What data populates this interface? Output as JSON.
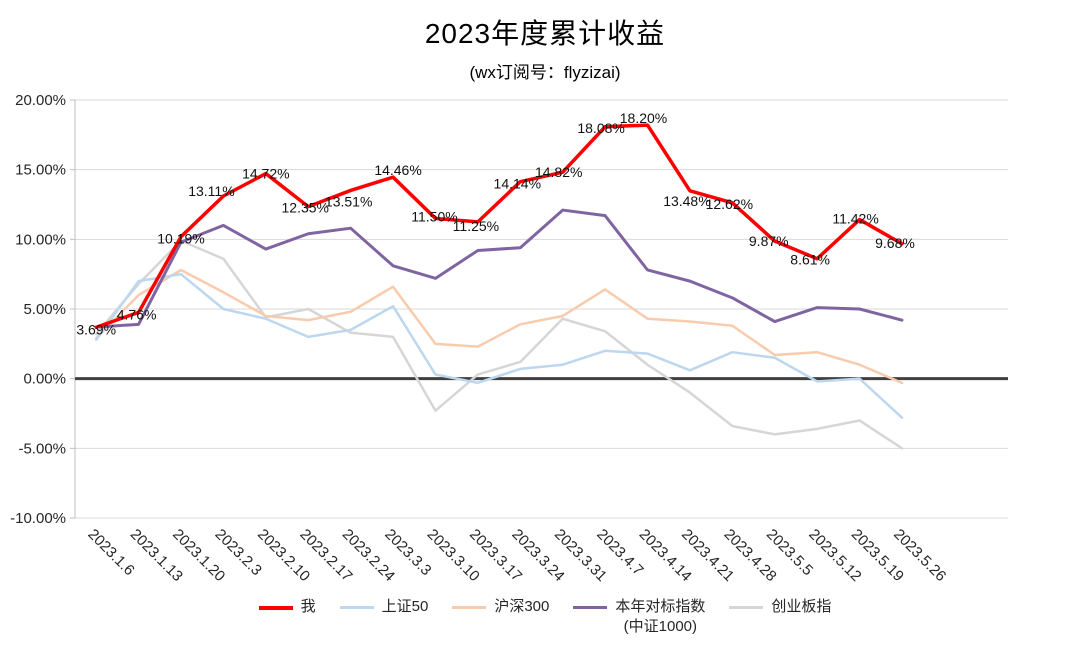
{
  "chart_data": {
    "type": "line",
    "title": "2023年度累计收益",
    "subtitle": "(wx订阅号：flyzizai)",
    "x": [
      "2023.1.6",
      "2023.1.13",
      "2023.1.20",
      "2023.2.3",
      "2023.2.10",
      "2023.2.17",
      "2023.2.24",
      "2023.3.3",
      "2023.3.10",
      "2023.3.17",
      "2023.3.24",
      "2023.3.31",
      "2023.4.7",
      "2023.4.14",
      "2023.4.21",
      "2023.4.28",
      "2023.5.5",
      "2023.5.12",
      "2023.5.19",
      "2023.5.26"
    ],
    "x_slots": 22,
    "ylim": [
      -10,
      20
    ],
    "ytick_step": 5,
    "ytick_labels": [
      "20.00%",
      "15.00%",
      "10.00%",
      "5.00%",
      "0.00%",
      "-5.00%",
      "-10.00%"
    ],
    "grid": true,
    "legend_position": "bottom",
    "colors": {
      "gridline": "#D9D9D9",
      "axis": "#BFBFBF",
      "zero_axis": "#404040",
      "text": "#262626"
    },
    "series": [
      {
        "name": "我",
        "color": "#FE0000",
        "width": 3.5,
        "data_labels": true,
        "values": [
          3.69,
          4.76,
          10.19,
          13.11,
          14.72,
          12.35,
          13.51,
          14.46,
          11.5,
          11.25,
          14.14,
          14.82,
          18.08,
          18.2,
          13.48,
          12.62,
          9.87,
          8.61,
          11.42,
          9.68
        ]
      },
      {
        "name": "上证50",
        "color": "#BDD7EE",
        "width": 2.5,
        "values": [
          2.8,
          7.0,
          7.5,
          5.0,
          4.3,
          3.0,
          3.5,
          5.2,
          0.3,
          -0.3,
          0.7,
          1.0,
          2.0,
          1.8,
          0.6,
          1.9,
          1.5,
          -0.2,
          0.0,
          -2.8
        ]
      },
      {
        "name": "沪深300",
        "color": "#F8CBAD",
        "width": 2.5,
        "values": [
          2.9,
          6.0,
          7.8,
          6.2,
          4.5,
          4.2,
          4.8,
          6.6,
          2.5,
          2.3,
          3.9,
          4.5,
          6.4,
          4.3,
          4.1,
          3.8,
          1.7,
          1.9,
          1.0,
          -0.3
        ]
      },
      {
        "name": "本年对标指数",
        "name_line2": "(中证1000)",
        "color": "#8064A2",
        "width": 3,
        "values": [
          3.7,
          3.9,
          9.8,
          11.0,
          9.3,
          10.4,
          10.8,
          8.1,
          7.2,
          9.2,
          9.4,
          12.1,
          11.7,
          7.8,
          7.0,
          5.8,
          4.1,
          5.1,
          5.0,
          4.2
        ]
      },
      {
        "name": "创业板指",
        "color": "#D6D6D6",
        "width": 2.5,
        "values": [
          3.2,
          6.8,
          9.9,
          8.6,
          4.4,
          5.0,
          3.3,
          3.0,
          -2.3,
          0.3,
          1.2,
          4.3,
          3.4,
          1.0,
          -1.0,
          -3.4,
          -4.0,
          -3.6,
          -3.0,
          -5.0
        ]
      }
    ]
  }
}
